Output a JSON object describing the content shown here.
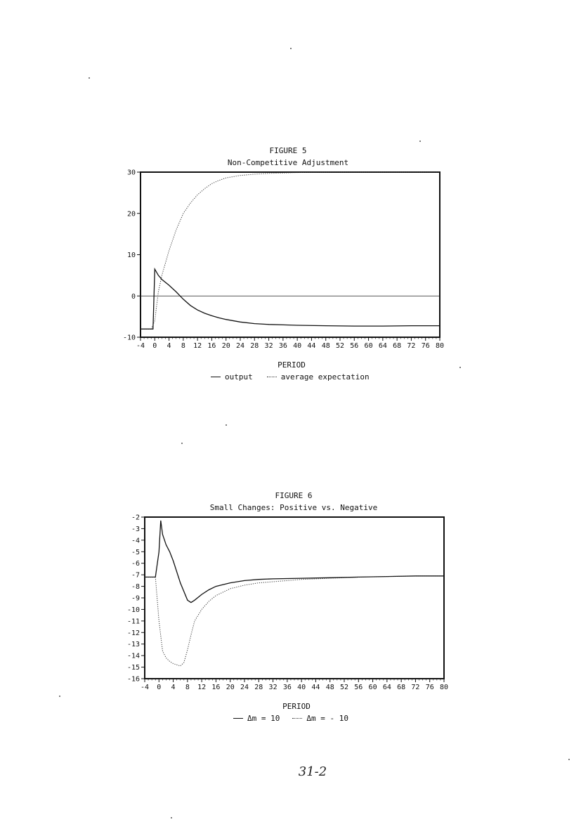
{
  "charts": {
    "fig5": {
      "label": "FIGURE 5",
      "subtitle": "Non-Competitive Adjustment",
      "xlabel": "PERIOD",
      "legend": [
        {
          "name": "output",
          "style": "solid"
        },
        {
          "name": "average expectation",
          "style": "dotted"
        }
      ]
    },
    "fig6": {
      "label": "FIGURE 6",
      "subtitle": "Small Changes: Positive vs. Negative",
      "xlabel": "PERIOD",
      "legend": [
        {
          "name": "Δm = 10",
          "style": "solid"
        },
        {
          "name": "Δm = - 10",
          "style": "dotted"
        }
      ]
    }
  },
  "page_number": "31-2",
  "chart_data": [
    {
      "type": "line",
      "title": "FIGURE 5",
      "subtitle": "Non-Competitive Adjustment",
      "xlabel": "PERIOD",
      "ylabel": "",
      "xlim": [
        -4,
        80
      ],
      "ylim": [
        -10,
        30
      ],
      "xticks": [
        -4,
        0,
        4,
        8,
        12,
        16,
        20,
        24,
        28,
        32,
        36,
        40,
        44,
        48,
        52,
        56,
        60,
        64,
        68,
        72,
        76,
        80
      ],
      "yticks": [
        -10,
        0,
        10,
        20,
        30
      ],
      "ytick_labels": [
        "-10",
        "0",
        "10",
        "20",
        "30"
      ],
      "zero_line": 0,
      "series": [
        {
          "name": "output",
          "style": "solid",
          "x": [
            -4,
            -1,
            -0.5,
            0,
            1,
            2,
            4,
            6,
            8,
            10,
            12,
            14,
            16,
            18,
            20,
            24,
            28,
            32,
            36,
            40,
            48,
            56,
            64,
            72,
            80
          ],
          "y": [
            -8,
            -8,
            -8,
            6.5,
            5,
            4,
            2.6,
            1,
            -0.8,
            -2.3,
            -3.4,
            -4.2,
            -4.8,
            -5.3,
            -5.7,
            -6.3,
            -6.7,
            -6.9,
            -7.0,
            -7.1,
            -7.2,
            -7.3,
            -7.3,
            -7.2,
            -7.2
          ]
        },
        {
          "name": "average expectation",
          "style": "dotted",
          "x": [
            -4,
            -1,
            0,
            1,
            2,
            4,
            6,
            8,
            10,
            12,
            14,
            16,
            18,
            20,
            24,
            28,
            32,
            36,
            40,
            48,
            56,
            64,
            72,
            80
          ],
          "y": [
            -8,
            -8,
            -6,
            1,
            5,
            11,
            16,
            20,
            22.5,
            24.5,
            26,
            27.2,
            28,
            28.6,
            29.2,
            29.5,
            29.7,
            29.8,
            29.9,
            30,
            30,
            30,
            30,
            30
          ]
        }
      ]
    },
    {
      "type": "line",
      "title": "FIGURE 6",
      "subtitle": "Small Changes: Positive vs. Negative",
      "xlabel": "PERIOD",
      "ylabel": "",
      "xlim": [
        -4,
        80
      ],
      "ylim": [
        -16,
        -2
      ],
      "xticks": [
        -4,
        0,
        4,
        8,
        12,
        16,
        20,
        24,
        28,
        32,
        36,
        40,
        44,
        48,
        52,
        56,
        60,
        64,
        68,
        72,
        76,
        80
      ],
      "yticks": [
        -2,
        -3,
        -4,
        -5,
        -6,
        -7,
        -8,
        -9,
        -10,
        -11,
        -12,
        -13,
        -14,
        -15,
        -16
      ],
      "series": [
        {
          "name": "Δm = 10",
          "style": "solid",
          "x": [
            -4,
            -1,
            0,
            0.5,
            1,
            2,
            3,
            4,
            6,
            8,
            9,
            10,
            12,
            14,
            16,
            20,
            24,
            28,
            32,
            40,
            48,
            56,
            64,
            72,
            80
          ],
          "y": [
            -7.2,
            -7.2,
            -5,
            -2.3,
            -3.5,
            -4.4,
            -5.0,
            -5.8,
            -7.7,
            -9.2,
            -9.4,
            -9.2,
            -8.7,
            -8.3,
            -8.0,
            -7.7,
            -7.5,
            -7.4,
            -7.35,
            -7.3,
            -7.25,
            -7.2,
            -7.15,
            -7.1,
            -7.1
          ]
        },
        {
          "name": "Δm = - 10",
          "style": "dotted",
          "x": [
            -4,
            -1,
            0,
            1,
            2,
            3,
            4,
            6,
            7,
            8,
            9,
            10,
            12,
            14,
            16,
            20,
            24,
            28,
            32,
            40,
            48,
            56,
            64,
            72,
            80
          ],
          "y": [
            -7.2,
            -7.2,
            -11,
            -13.6,
            -14.2,
            -14.5,
            -14.7,
            -14.9,
            -14.6,
            -13.5,
            -12.2,
            -11.0,
            -10.0,
            -9.3,
            -8.8,
            -8.2,
            -7.9,
            -7.7,
            -7.6,
            -7.4,
            -7.3,
            -7.2,
            -7.15,
            -7.1,
            -7.1
          ]
        }
      ]
    }
  ]
}
